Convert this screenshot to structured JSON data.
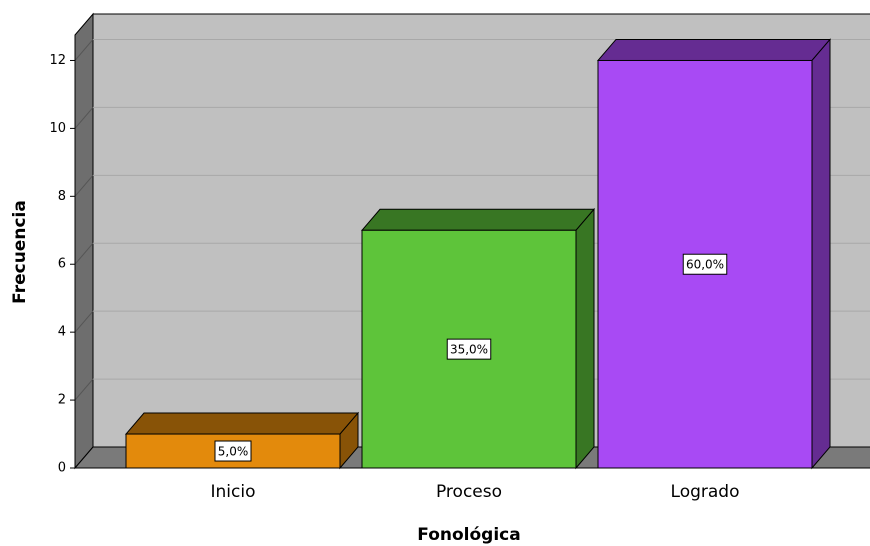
{
  "chart_data": {
    "type": "bar3d",
    "x_label": "Fonológica",
    "y_label": "Frecuencia",
    "categories": [
      "Inicio",
      "Proceso",
      "Logrado"
    ],
    "values": [
      1,
      7,
      12
    ],
    "data_labels": [
      "5,0%",
      "35,0%",
      "60,0%"
    ],
    "colors": [
      "#e38a0c",
      "#5ec43a",
      "#a84af4"
    ],
    "ylim": [
      0,
      12.75
    ],
    "yticks": [
      0,
      2,
      4,
      6,
      8,
      10,
      12
    ],
    "grid": true
  }
}
